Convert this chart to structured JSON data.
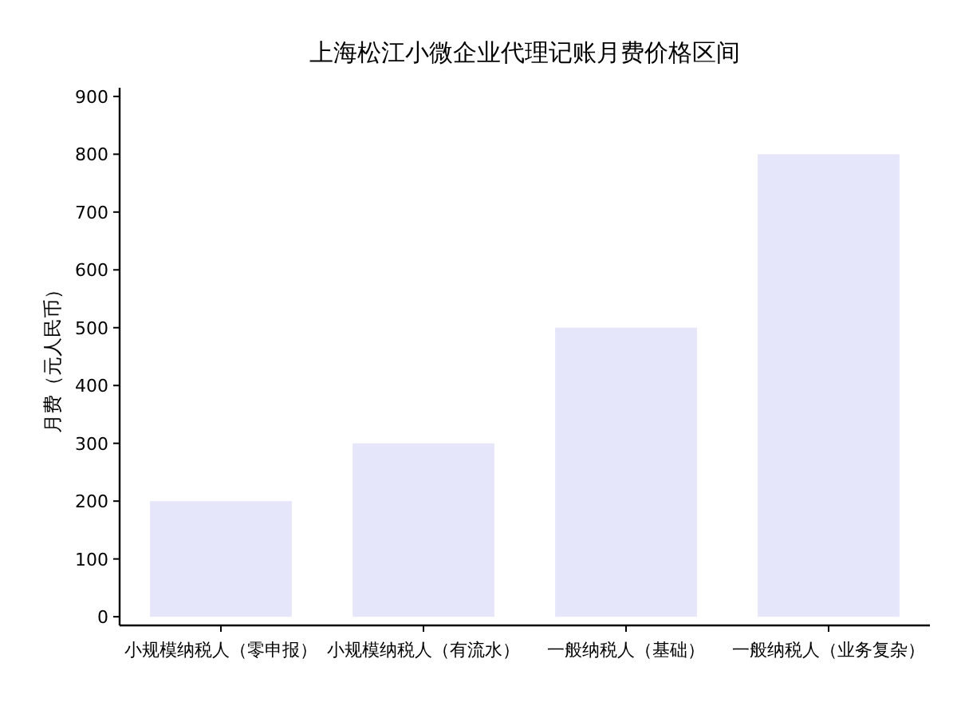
{
  "chart_data": {
    "type": "bar",
    "title": "上海松江小微企业代理记账月费价格区间",
    "ylabel": "月费（元人民币）",
    "categories": [
      "小规模纳税人（零申报）",
      "小规模纳税人（有流水）",
      "一般纳税人（基础）",
      "一般纳税人（业务复杂）"
    ],
    "values": [
      200,
      300,
      500,
      800
    ],
    "color": "#e6e6fa",
    "ylim": [
      -15,
      915
    ],
    "yticks": [
      0,
      100,
      200,
      300,
      400,
      500,
      600,
      700,
      800,
      900
    ]
  }
}
